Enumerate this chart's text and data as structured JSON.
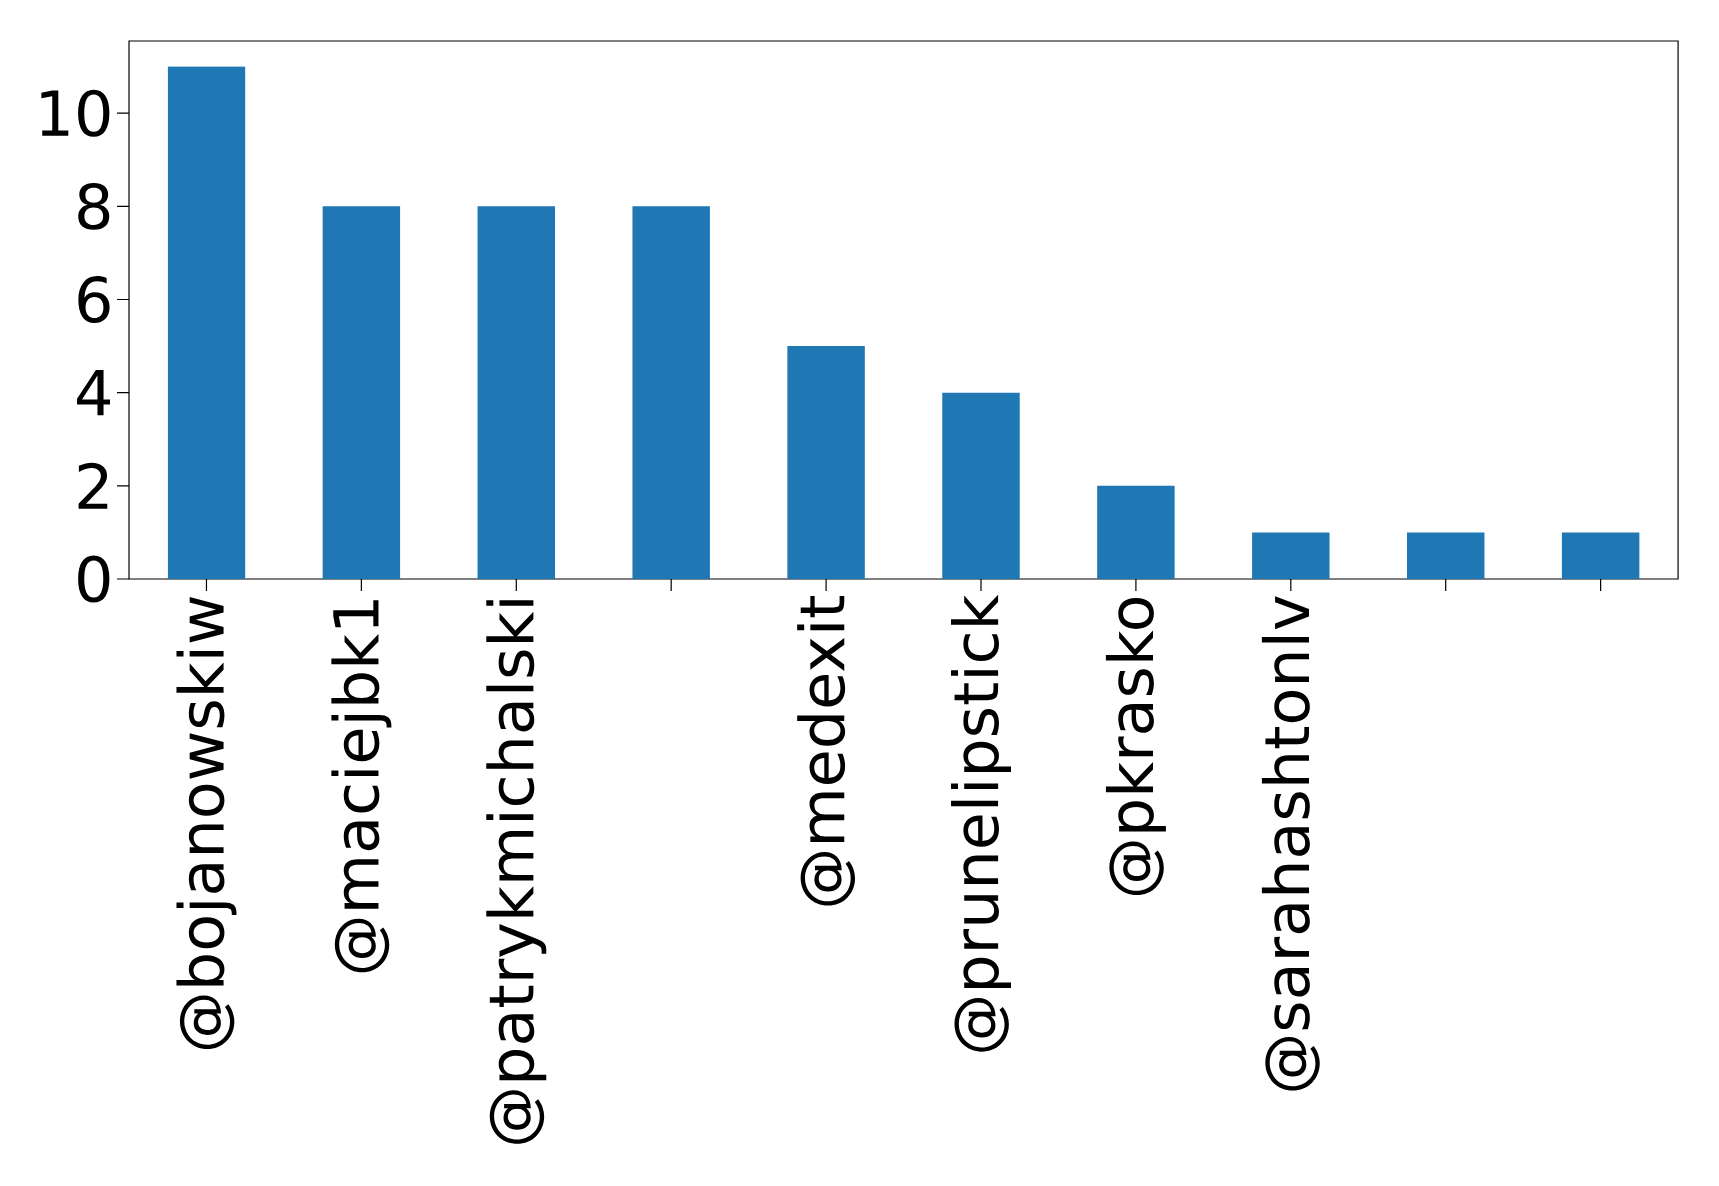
{
  "chart_data": {
    "type": "bar",
    "categories": [
      "@bojanowskiw",
      "@maciejbk1",
      "@patrykmichalski",
      null,
      "@medexit",
      "@prunelipstick",
      "@pkrasko",
      "@sarahashtonlv",
      null,
      null
    ],
    "values": [
      11,
      8,
      8,
      8,
      5,
      4,
      2,
      1,
      1,
      1
    ],
    "color": "#1f77b4",
    "ylim": [
      0,
      11.55
    ],
    "yticks": [
      0,
      2,
      4,
      6,
      8,
      10
    ]
  }
}
